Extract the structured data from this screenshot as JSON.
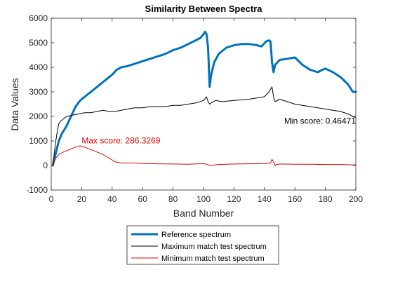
{
  "chart_data": {
    "type": "line",
    "title": "Similarity Between Spectra",
    "xlabel": "Band Number",
    "ylabel": "Data Values",
    "xlim": [
      0,
      200
    ],
    "ylim": [
      -1000,
      6000
    ],
    "xticks": [
      0,
      20,
      40,
      60,
      80,
      100,
      120,
      140,
      160,
      180,
      200
    ],
    "yticks": [
      -1000,
      0,
      1000,
      2000,
      3000,
      4000,
      5000,
      6000
    ],
    "grid": false,
    "legend_position": "below",
    "series": [
      {
        "name": "Reference spectrum",
        "color": "#0072BD",
        "width": 3,
        "x": [
          1,
          3,
          5,
          7,
          10,
          13,
          16,
          19,
          22,
          25,
          28,
          31,
          34,
          37,
          40,
          43,
          46,
          50,
          55,
          60,
          65,
          70,
          75,
          80,
          85,
          90,
          95,
          98,
          100,
          101,
          102,
          103,
          104,
          105,
          107,
          110,
          115,
          120,
          125,
          130,
          135,
          138,
          141,
          143,
          144,
          145,
          146,
          147,
          150,
          155,
          160,
          165,
          170,
          175,
          178,
          180,
          185,
          190,
          195,
          198,
          200
        ],
        "y": [
          0,
          500,
          1000,
          1300,
          1600,
          2000,
          2400,
          2650,
          2800,
          2950,
          3100,
          3250,
          3400,
          3550,
          3700,
          3900,
          4000,
          4050,
          4150,
          4250,
          4350,
          4450,
          4550,
          4700,
          4800,
          4950,
          5100,
          5200,
          5350,
          5450,
          5350,
          4800,
          3200,
          3700,
          4200,
          4550,
          4800,
          4900,
          4950,
          4950,
          4900,
          4850,
          5050,
          5100,
          5050,
          4200,
          3800,
          4100,
          4300,
          4350,
          4400,
          4100,
          3900,
          3800,
          3900,
          3950,
          3800,
          3600,
          3300,
          3000,
          3000
        ]
      },
      {
        "name": "Maximum match test spectrum",
        "color": "#000000",
        "width": 1,
        "x": [
          1,
          2,
          3,
          4,
          5,
          6,
          8,
          10,
          14,
          18,
          22,
          26,
          30,
          34,
          38,
          42,
          46,
          50,
          55,
          60,
          65,
          70,
          75,
          80,
          85,
          90,
          95,
          100,
          102,
          103,
          104,
          105,
          108,
          112,
          120,
          130,
          140,
          143,
          145,
          146,
          147,
          150,
          155,
          160,
          165,
          170,
          175,
          180,
          185,
          190,
          195,
          198,
          200
        ],
        "y": [
          0,
          500,
          1000,
          1400,
          1700,
          1800,
          1900,
          2000,
          2050,
          2100,
          2150,
          2150,
          2200,
          2250,
          2200,
          2200,
          2250,
          2300,
          2350,
          2350,
          2400,
          2400,
          2400,
          2450,
          2450,
          2500,
          2550,
          2650,
          2800,
          2600,
          2500,
          2550,
          2650,
          2600,
          2650,
          2700,
          2800,
          3000,
          3200,
          2800,
          2600,
          2700,
          2600,
          2500,
          2450,
          2400,
          2350,
          2300,
          2250,
          2200,
          2100,
          2000,
          1950
        ]
      },
      {
        "name": "Minimum match test spectrum",
        "color": "#E00000",
        "width": 1,
        "x": [
          1,
          3,
          5,
          8,
          12,
          16,
          19,
          22,
          26,
          30,
          34,
          38,
          42,
          46,
          50,
          55,
          60,
          70,
          80,
          90,
          100,
          102,
          104,
          110,
          120,
          130,
          140,
          144,
          145,
          146,
          147,
          148,
          150,
          160,
          170,
          180,
          190,
          195,
          200
        ],
        "y": [
          0,
          300,
          450,
          550,
          650,
          750,
          800,
          750,
          650,
          550,
          450,
          300,
          150,
          100,
          100,
          100,
          80,
          70,
          60,
          50,
          80,
          50,
          0,
          40,
          60,
          70,
          80,
          100,
          250,
          150,
          0,
          40,
          60,
          50,
          50,
          40,
          40,
          30,
          20
        ]
      }
    ],
    "annotations": [
      {
        "text": "Max score: 286.3269",
        "x": 20,
        "y": 900,
        "color": "#E00000",
        "anchor": "start"
      },
      {
        "text": "Min score: 0.46471",
        "x": 200,
        "y": 1700,
        "color": "#000000",
        "anchor": "end"
      }
    ]
  }
}
